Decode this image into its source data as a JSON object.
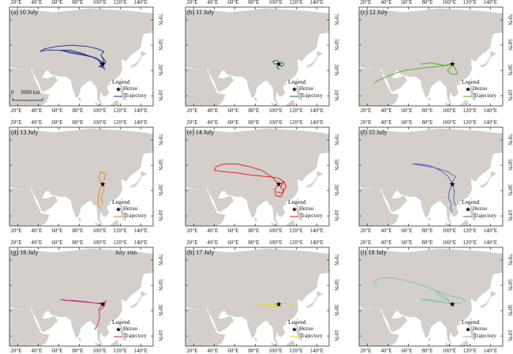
{
  "figure": {
    "x_ticks": [
      "20°E",
      "40°E",
      "60°E",
      "80°E",
      "100°E",
      "120°E",
      "140°E"
    ],
    "y_ticks": [
      "70°N",
      "50°N",
      "30°N",
      "10°N"
    ],
    "legend": {
      "title": "Legend",
      "station_label": "Hezuo",
      "trajectory_label": "Trajectory"
    },
    "station": {
      "name": "Hezuo",
      "lon": 102.9,
      "lat": 35.0
    },
    "scale_bar": {
      "start": "0",
      "end": "3600 km"
    },
    "land_color": "#d4cfcb",
    "ocean_color": "#ffffff",
    "station_color": "#000000",
    "icons": {
      "station": "star-icon"
    }
  },
  "panels": [
    {
      "id": "a",
      "title": "(a) 10 July",
      "color": "#2e3f8f",
      "show_scale": true,
      "trajectories": [
        [
          [
            102.9,
            35
          ],
          [
            100,
            38
          ],
          [
            92,
            41
          ],
          [
            82,
            43
          ],
          [
            70,
            45
          ],
          [
            58,
            46
          ],
          [
            48,
            46
          ],
          [
            42,
            45
          ],
          [
            46,
            47
          ],
          [
            58,
            49
          ],
          [
            72,
            50
          ],
          [
            88,
            49
          ],
          [
            98,
            47
          ],
          [
            104,
            45
          ],
          [
            101,
            42
          ],
          [
            104,
            38
          ]
        ],
        [
          [
            102.9,
            35
          ],
          [
            97,
            39
          ],
          [
            85,
            43
          ],
          [
            72,
            46
          ],
          [
            62,
            46
          ],
          [
            70,
            44
          ],
          [
            84,
            42
          ],
          [
            96,
            40
          ],
          [
            102,
            37
          ]
        ],
        [
          [
            102.9,
            35
          ],
          [
            104,
            38
          ],
          [
            102,
            41
          ],
          [
            106,
            37
          ],
          [
            103,
            33
          ],
          [
            105,
            31
          ],
          [
            101,
            34
          ]
        ],
        [
          [
            102.9,
            35
          ],
          [
            99,
            33
          ],
          [
            104,
            32
          ],
          [
            100,
            36
          ],
          [
            105,
            36
          ]
        ]
      ]
    },
    {
      "id": "b",
      "title": "(b) 11 July",
      "color": "#1e7f77",
      "trajectories": [
        [
          [
            102.9,
            35
          ],
          [
            99,
            35
          ],
          [
            97,
            37
          ],
          [
            100,
            38
          ],
          [
            103,
            37
          ]
        ],
        [
          [
            102.9,
            35
          ],
          [
            106,
            33
          ],
          [
            108,
            35
          ],
          [
            105,
            37
          ]
        ],
        [
          [
            102.9,
            35
          ],
          [
            101,
            32
          ],
          [
            104,
            31
          ]
        ]
      ]
    },
    {
      "id": "c",
      "title": "(c) 12 July",
      "color": "#52b522",
      "trajectories": [
        [
          [
            102.9,
            35
          ],
          [
            98,
            34
          ],
          [
            88,
            33
          ],
          [
            76,
            32
          ],
          [
            66,
            31
          ],
          [
            56,
            30
          ],
          [
            48,
            28
          ],
          [
            42,
            26
          ],
          [
            36,
            24
          ],
          [
            30,
            22
          ],
          [
            27,
            20
          ]
        ],
        [
          [
            102.9,
            35
          ],
          [
            106,
            31
          ],
          [
            108,
            27
          ],
          [
            102,
            27
          ],
          [
            98,
            30
          ],
          [
            102,
            33
          ]
        ],
        [
          [
            102.9,
            35
          ],
          [
            95,
            34
          ],
          [
            82,
            36
          ],
          [
            72,
            35
          ]
        ]
      ]
    },
    {
      "id": "d",
      "title": "(d) 13 July",
      "color": "#f08a1c",
      "trajectories": [
        [
          [
            102.9,
            35
          ],
          [
            99,
            39
          ],
          [
            101,
            45
          ],
          [
            106,
            43
          ],
          [
            104,
            38
          ]
        ],
        [
          [
            102.9,
            35
          ],
          [
            100,
            31
          ],
          [
            99,
            26
          ],
          [
            98,
            21
          ],
          [
            100,
            16
          ]
        ],
        [
          [
            102.9,
            35
          ],
          [
            104,
            30
          ],
          [
            101,
            24
          ],
          [
            103,
            20
          ]
        ]
      ]
    },
    {
      "id": "e",
      "title": "(e) 14 July",
      "color": "#e32626",
      "trajectories": [
        [
          [
            102.9,
            35
          ],
          [
            96,
            41
          ],
          [
            86,
            46
          ],
          [
            74,
            49
          ],
          [
            62,
            51
          ],
          [
            50,
            51
          ],
          [
            42,
            49
          ],
          [
            40,
            46
          ],
          [
            48,
            45
          ],
          [
            62,
            44
          ],
          [
            78,
            42
          ],
          [
            92,
            41
          ],
          [
            102,
            40
          ],
          [
            108,
            37
          ],
          [
            105,
            33
          ]
        ],
        [
          [
            102.9,
            35
          ],
          [
            99,
            31
          ],
          [
            100,
            26
          ],
          [
            105,
            25
          ],
          [
            108,
            30
          ],
          [
            104,
            33
          ]
        ],
        [
          [
            102.9,
            35
          ],
          [
            108,
            37
          ],
          [
            110,
            33
          ],
          [
            106,
            28
          ],
          [
            101,
            29
          ]
        ]
      ]
    },
    {
      "id": "f",
      "title": "(f) 15 July",
      "color": "#6464b4",
      "trajectories": [
        [
          [
            102.9,
            35
          ],
          [
            99,
            41
          ],
          [
            91,
            46
          ],
          [
            80,
            50
          ],
          [
            70,
            51
          ],
          [
            64,
            51
          ],
          [
            72,
            50
          ],
          [
            86,
            48
          ],
          [
            98,
            45
          ],
          [
            106,
            41
          ],
          [
            103,
            37
          ]
        ],
        [
          [
            102.9,
            35
          ],
          [
            100,
            30
          ],
          [
            99,
            24
          ],
          [
            102,
            20
          ],
          [
            101,
            16
          ],
          [
            103,
            13
          ]
        ],
        [
          [
            102.9,
            35
          ],
          [
            105,
            29
          ],
          [
            104,
            23
          ],
          [
            106,
            18
          ]
        ]
      ]
    },
    {
      "id": "g",
      "title": "(g) 16 July",
      "extra_label": "July 16th",
      "color": "#d42a7e",
      "trajectories": [
        [
          [
            102.9,
            35
          ],
          [
            96,
            36
          ],
          [
            86,
            37
          ],
          [
            74,
            38
          ],
          [
            66,
            38
          ],
          [
            62,
            39
          ],
          [
            68,
            38
          ],
          [
            82,
            37
          ],
          [
            96,
            36
          ],
          [
            104,
            36
          ]
        ],
        [
          [
            102.9,
            35
          ],
          [
            99,
            31
          ],
          [
            100,
            25
          ],
          [
            98,
            19
          ],
          [
            95,
            15
          ]
        ],
        [
          [
            102.9,
            35
          ],
          [
            106,
            38
          ],
          [
            104,
            33
          ],
          [
            100,
            30
          ]
        ]
      ]
    },
    {
      "id": "h",
      "title": "(h) 17 July",
      "color": "#e8d21c",
      "trajectories": [
        [
          [
            102.9,
            35
          ],
          [
            96,
            35
          ],
          [
            88,
            35
          ],
          [
            80,
            34
          ],
          [
            74,
            34
          ]
        ],
        [
          [
            102.9,
            35
          ],
          [
            108,
            36
          ],
          [
            114,
            35
          ],
          [
            118,
            34
          ]
        ],
        [
          [
            102.9,
            35
          ],
          [
            98,
            33
          ],
          [
            102,
            33
          ]
        ]
      ]
    },
    {
      "id": "i",
      "title": "(i) 18 July",
      "color": "#7ec8a2",
      "trajectories": [
        [
          [
            102.9,
            35
          ],
          [
            96,
            41
          ],
          [
            84,
            47
          ],
          [
            70,
            51
          ],
          [
            56,
            54
          ],
          [
            44,
            56
          ],
          [
            34,
            56
          ],
          [
            28,
            54
          ],
          [
            26,
            51
          ],
          [
            30,
            49
          ]
        ],
        [
          [
            102.9,
            35
          ],
          [
            98,
            38
          ],
          [
            90,
            42
          ],
          [
            86,
            46
          ],
          [
            94,
            44
          ],
          [
            104,
            41
          ],
          [
            112,
            40
          ],
          [
            116,
            37
          ]
        ],
        [
          [
            102.9,
            35
          ],
          [
            92,
            37
          ],
          [
            80,
            39
          ],
          [
            72,
            39
          ],
          [
            86,
            37
          ],
          [
            100,
            36
          ],
          [
            112,
            36
          ]
        ]
      ]
    }
  ]
}
